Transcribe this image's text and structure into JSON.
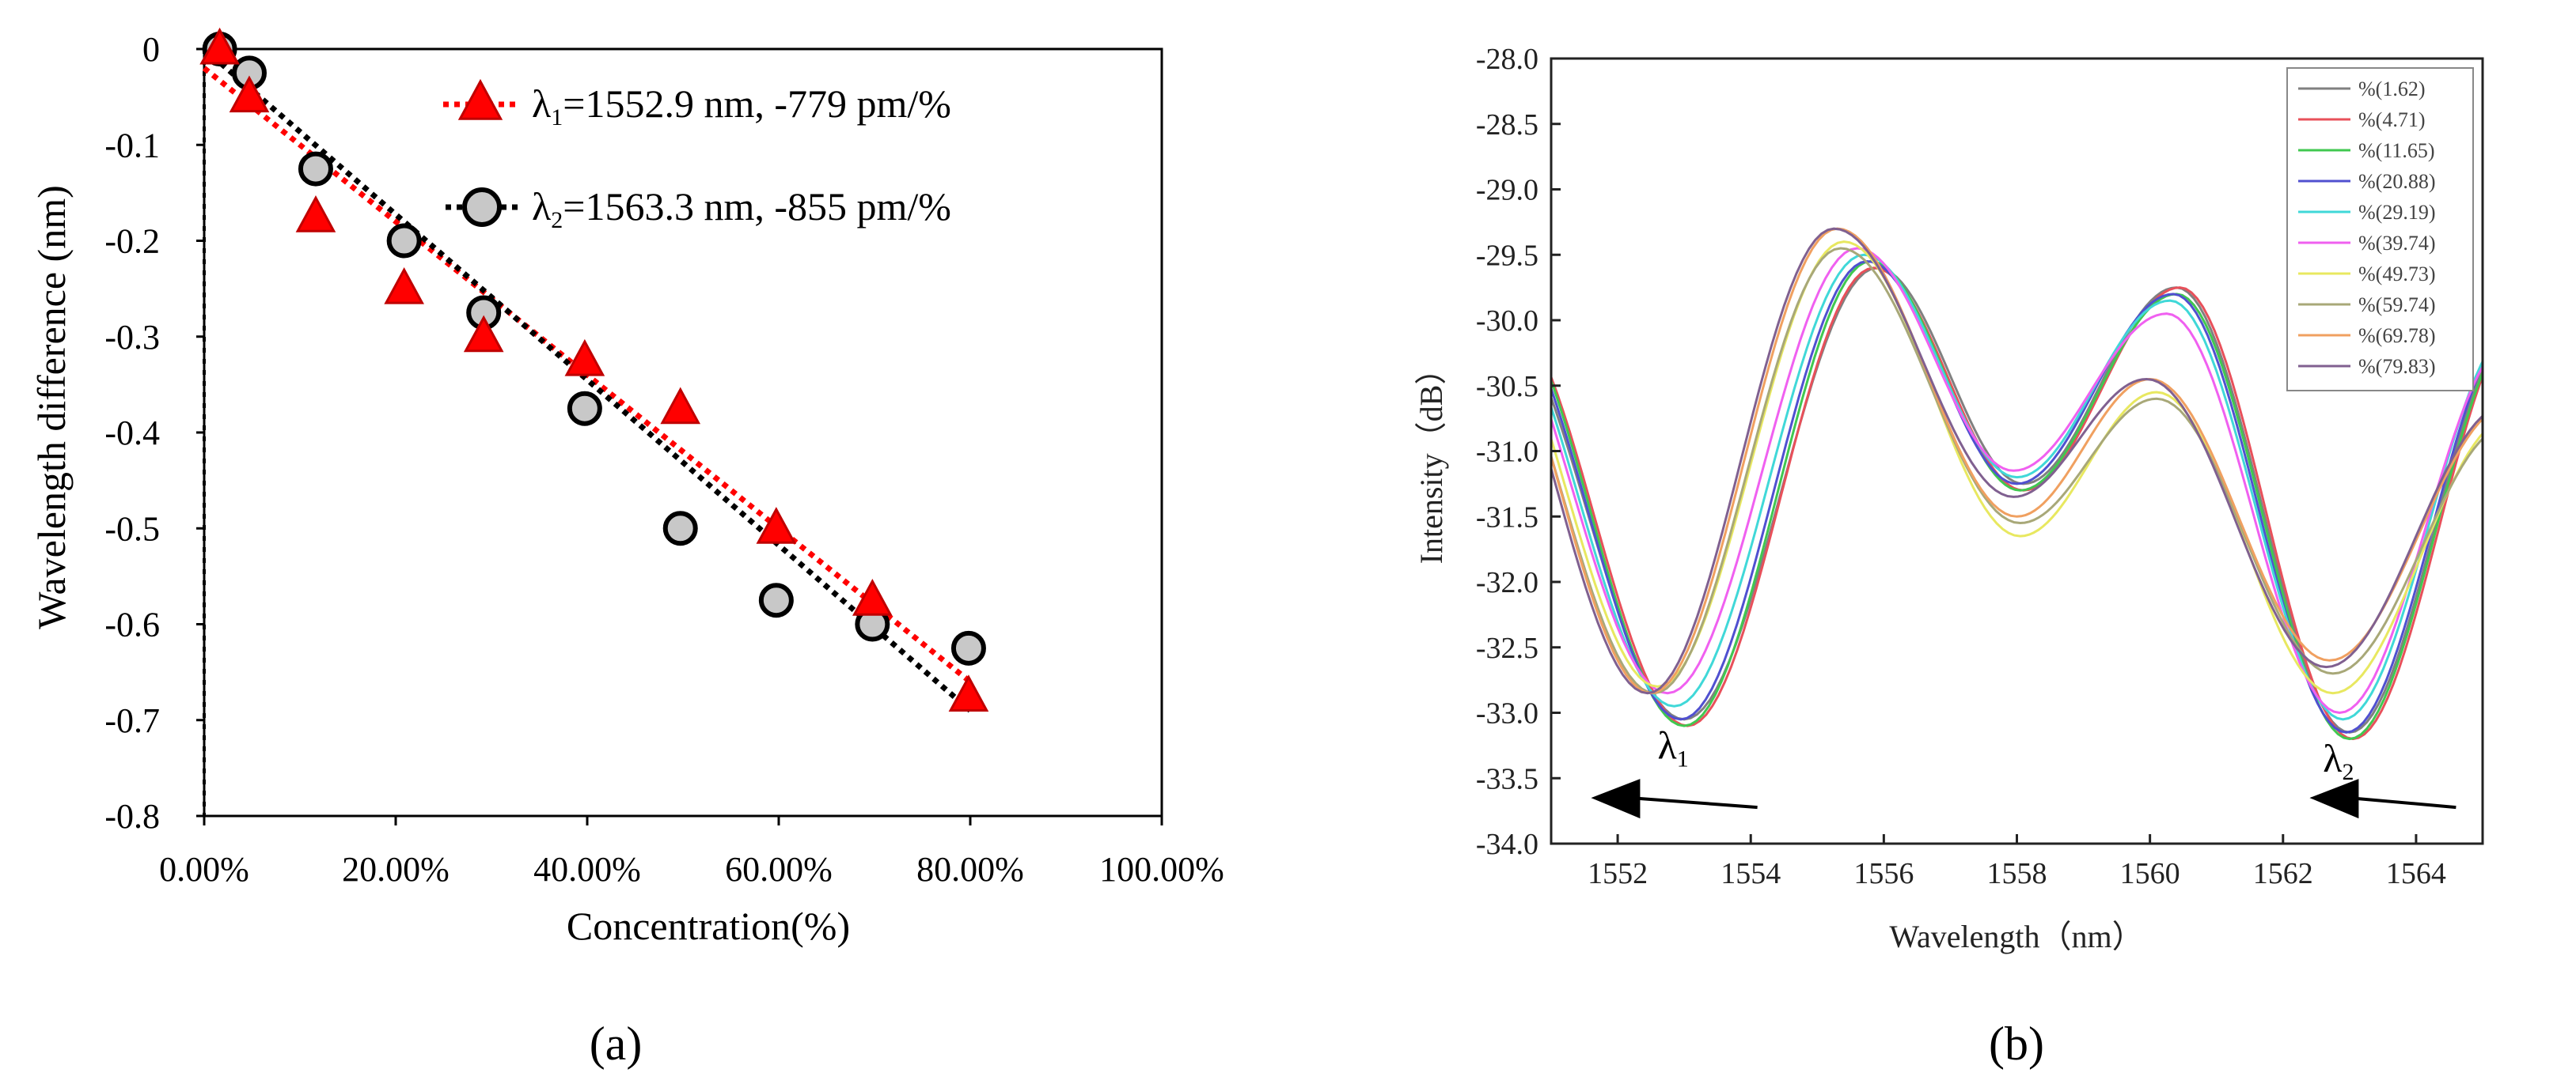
{
  "chart_data": [
    {
      "panel": "a",
      "type": "scatter",
      "panel_label": "(a)",
      "xlabel": "Concentration(%)",
      "ylabel": "Wavelength difference (nm)",
      "xlim": [
        0,
        100
      ],
      "ylim": [
        -0.8,
        0
      ],
      "x_ticks": [
        0,
        20,
        40,
        60,
        80,
        100
      ],
      "x_tick_labels": [
        "0.00%",
        "20.00%",
        "40.00%",
        "60.00%",
        "80.00%",
        "100.00%"
      ],
      "y_ticks": [
        0,
        -0.1,
        -0.2,
        -0.3,
        -0.4,
        -0.5,
        -0.6,
        -0.7,
        -0.8
      ],
      "y_tick_labels": [
        "0",
        "-0.1",
        "-0.2",
        "-0.3",
        "-0.4",
        "-0.5",
        "-0.6",
        "-0.7",
        "-0.8"
      ],
      "legend_position": "top-right",
      "series": [
        {
          "name": "λ1=1552.9 nm, -779 pm/%",
          "legend_parts": {
            "symbol": "λ",
            "sub": "1",
            "rest": "=1552.9 nm, -779 pm/%"
          },
          "marker": "triangle",
          "color": "#ff0000",
          "edge_color": "#c00000",
          "x": [
            1.62,
            4.71,
            11.65,
            20.88,
            29.19,
            39.74,
            49.73,
            59.74,
            69.78,
            79.83
          ],
          "y": [
            0,
            -0.05,
            -0.175,
            -0.25,
            -0.3,
            -0.325,
            -0.375,
            -0.5,
            -0.575,
            -0.675
          ],
          "trend": {
            "x": [
              0,
              80
            ],
            "y": [
              -0.02,
              -0.66
            ]
          }
        },
        {
          "name": "λ2=1563.3 nm, -855 pm/%",
          "legend_parts": {
            "symbol": "λ",
            "sub": "2",
            "rest": "=1563.3 nm, -855 pm/%"
          },
          "marker": "circle",
          "color": "#c8c8c8",
          "edge_color": "#000000",
          "x": [
            1.62,
            4.71,
            11.65,
            20.88,
            29.19,
            39.74,
            49.73,
            59.74,
            69.78,
            79.83
          ],
          "y": [
            0,
            -0.025,
            -0.125,
            -0.2,
            -0.275,
            -0.375,
            -0.5,
            -0.575,
            -0.6,
            -0.625
          ],
          "trend": {
            "x": [
              0,
              80
            ],
            "y": [
              0,
              -0.69
            ]
          }
        }
      ]
    },
    {
      "panel": "b",
      "type": "line",
      "panel_label": "(b)",
      "xlabel": "Wavelength（nm）",
      "ylabel": "Intensity（dB）",
      "xlim": [
        1551,
        1565
      ],
      "ylim": [
        -34,
        -28
      ],
      "x_ticks": [
        1552,
        1554,
        1556,
        1558,
        1560,
        1562,
        1564
      ],
      "y_ticks": [
        -28.0,
        -28.5,
        -29.0,
        -29.5,
        -30.0,
        -30.5,
        -31.0,
        -31.5,
        -32.0,
        -32.5,
        -33.0,
        -33.5,
        -34.0
      ],
      "y_tick_labels": [
        "-28.0",
        "-28.5",
        "-29.0",
        "-29.5",
        "-30.0",
        "-30.5",
        "-31.0",
        "-31.5",
        "-32.0",
        "-32.5",
        "-33.0",
        "-33.5",
        "-34.0"
      ],
      "legend_position": "top-right",
      "annotations": [
        {
          "symbol": "λ",
          "sub": "1",
          "at_x": 1552.6,
          "at_y": -33.35,
          "arrow_from_x": 1554.1,
          "arrow_to_x": 1551.6,
          "arrow_y": -33.65
        },
        {
          "symbol": "λ",
          "sub": "2",
          "at_x": 1562.6,
          "at_y": -33.45,
          "arrow_from_x": 1564.6,
          "arrow_to_x": 1562.4,
          "arrow_y": -33.65
        }
      ],
      "series": [
        {
          "name": "%(1.62)",
          "color": "#808080",
          "min1_x": 1553.0,
          "min1_y": -33.05,
          "max1_x": 1555.9,
          "max1_y": -29.6,
          "min2_x": 1558.1,
          "min2_y": -31.25,
          "max2_x": 1560.4,
          "max2_y": -29.75,
          "min3_x": 1563.0,
          "min3_y": -33.15
        },
        {
          "name": "%(4.71)",
          "color": "#e8505a",
          "min1_x": 1553.05,
          "min1_y": -33.1,
          "max1_x": 1555.85,
          "max1_y": -29.6,
          "min2_x": 1558.1,
          "min2_y": -31.3,
          "max2_x": 1560.45,
          "max2_y": -29.75,
          "min3_x": 1563.05,
          "min3_y": -33.2
        },
        {
          "name": "%(11.65)",
          "color": "#40c850",
          "min1_x": 1553.0,
          "min1_y": -33.1,
          "max1_x": 1555.8,
          "max1_y": -29.55,
          "min2_x": 1558.05,
          "min2_y": -31.3,
          "max2_x": 1560.4,
          "max2_y": -29.8,
          "min3_x": 1563.0,
          "min3_y": -33.2
        },
        {
          "name": "%(20.88)",
          "color": "#5050d0",
          "min1_x": 1552.95,
          "min1_y": -33.05,
          "max1_x": 1555.75,
          "max1_y": -29.55,
          "min2_x": 1558.0,
          "min2_y": -31.25,
          "max2_x": 1560.35,
          "max2_y": -29.8,
          "min3_x": 1562.95,
          "min3_y": -33.15
        },
        {
          "name": "%(29.19)",
          "color": "#40d8d8",
          "min1_x": 1552.85,
          "min1_y": -32.95,
          "max1_x": 1555.7,
          "max1_y": -29.5,
          "min2_x": 1558.0,
          "min2_y": -31.2,
          "max2_x": 1560.3,
          "max2_y": -29.85,
          "min3_x": 1562.9,
          "min3_y": -33.05
        },
        {
          "name": "%(39.74)",
          "color": "#f060f0",
          "min1_x": 1552.75,
          "min1_y": -32.85,
          "max1_x": 1555.6,
          "max1_y": -29.45,
          "min2_x": 1557.95,
          "min2_y": -31.15,
          "max2_x": 1560.25,
          "max2_y": -29.95,
          "min3_x": 1562.85,
          "min3_y": -33.0
        },
        {
          "name": "%(49.73)",
          "color": "#e8e860",
          "min1_x": 1552.6,
          "min1_y": -32.8,
          "max1_x": 1555.4,
          "max1_y": -29.4,
          "min2_x": 1558.05,
          "min2_y": -31.65,
          "max2_x": 1560.1,
          "max2_y": -30.55,
          "min3_x": 1562.75,
          "min3_y": -32.85
        },
        {
          "name": "%(59.74)",
          "color": "#a8a878",
          "min1_x": 1552.55,
          "min1_y": -32.85,
          "max1_x": 1555.35,
          "max1_y": -29.45,
          "min2_x": 1558.05,
          "min2_y": -31.55,
          "max2_x": 1560.1,
          "max2_y": -30.6,
          "min3_x": 1562.75,
          "min3_y": -32.7
        },
        {
          "name": "%(69.78)",
          "color": "#f0a060",
          "min1_x": 1552.5,
          "min1_y": -32.85,
          "max1_x": 1555.3,
          "max1_y": -29.3,
          "min2_x": 1558.0,
          "min2_y": -31.5,
          "max2_x": 1560.0,
          "max2_y": -30.45,
          "min3_x": 1562.7,
          "min3_y": -32.6
        },
        {
          "name": "%(79.83)",
          "color": "#806090",
          "min1_x": 1552.45,
          "min1_y": -32.85,
          "max1_x": 1555.25,
          "max1_y": -29.3,
          "min2_x": 1557.95,
          "min2_y": -31.35,
          "max2_x": 1559.95,
          "max2_y": -30.45,
          "min3_x": 1562.65,
          "min3_y": -32.65
        }
      ]
    }
  ],
  "colors": {
    "red": "#ff0000",
    "grey_fill": "#c8c8c8",
    "black": "#000000"
  }
}
